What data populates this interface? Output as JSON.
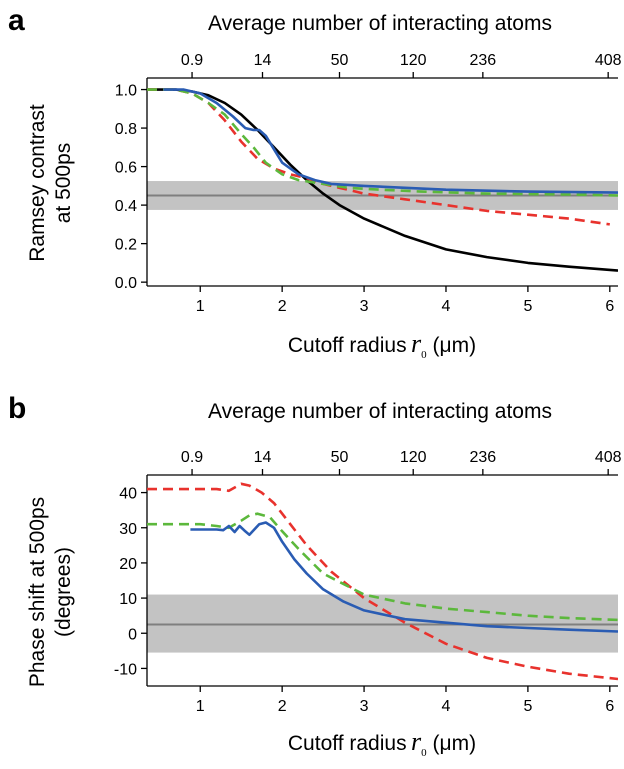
{
  "chart_data": [
    {
      "type": "line",
      "panel": "a",
      "top_axis_label": "Average number of interacting atoms",
      "top_ticks": [
        {
          "r": 0.9,
          "label": "0.9"
        },
        {
          "r": 1.76,
          "label": "14"
        },
        {
          "r": 2.7,
          "label": "50"
        },
        {
          "r": 3.6,
          "label": "120"
        },
        {
          "r": 4.45,
          "label": "236"
        },
        {
          "r": 5.98,
          "label": "408"
        }
      ],
      "xlabel_text": "Cutoff radius",
      "xlabel_symbol": "r",
      "xlabel_subscript": "0",
      "xlabel_unit": "(μm)",
      "ylabel_lines": [
        "Ramsey contrast",
        "at 500ps"
      ],
      "xlim": [
        0.35,
        6.1
      ],
      "ylim": [
        -0.02,
        1.06
      ],
      "xticks": [
        1,
        2,
        3,
        4,
        5,
        6
      ],
      "yticks": [
        0.0,
        0.2,
        0.4,
        0.6,
        0.8,
        1.0
      ],
      "ytick_labels": [
        "0.0",
        "0.2",
        "0.4",
        "0.6",
        "0.8",
        "1.0"
      ],
      "band": {
        "low": 0.375,
        "high": 0.525,
        "mid": 0.45
      },
      "series": [
        {
          "color": "#000000",
          "style": "solid",
          "x": [
            0.35,
            0.7,
            0.9,
            1.1,
            1.3,
            1.5,
            1.7,
            1.9,
            2.1,
            2.3,
            2.5,
            2.7,
            3.0,
            3.5,
            4.0,
            4.5,
            5.0,
            5.5,
            6.1
          ],
          "y": [
            1.0,
            1.0,
            0.99,
            0.97,
            0.93,
            0.87,
            0.79,
            0.7,
            0.61,
            0.53,
            0.46,
            0.4,
            0.33,
            0.24,
            0.17,
            0.13,
            0.1,
            0.08,
            0.06
          ]
        },
        {
          "color": "#e8322d",
          "style": "dashed",
          "x": [
            0.35,
            0.7,
            0.9,
            1.1,
            1.3,
            1.5,
            1.7,
            1.9,
            2.1,
            2.3,
            2.5,
            2.7,
            3.0,
            3.5,
            4.0,
            4.5,
            5.0,
            5.5,
            6.0
          ],
          "y": [
            1.0,
            1.0,
            0.98,
            0.93,
            0.84,
            0.73,
            0.64,
            0.59,
            0.56,
            0.54,
            0.51,
            0.49,
            0.46,
            0.43,
            0.4,
            0.37,
            0.35,
            0.33,
            0.3
          ]
        },
        {
          "color": "#5cb83c",
          "style": "dashed",
          "x": [
            0.35,
            0.7,
            0.9,
            1.1,
            1.3,
            1.5,
            1.65,
            1.8,
            2.0,
            2.2,
            2.5,
            2.8,
            3.2,
            3.7,
            4.5,
            5.5,
            6.1
          ],
          "y": [
            1.0,
            1.0,
            0.98,
            0.93,
            0.87,
            0.77,
            0.7,
            0.62,
            0.56,
            0.53,
            0.51,
            0.49,
            0.48,
            0.47,
            0.46,
            0.455,
            0.45
          ]
        },
        {
          "color": "#2a5cb3",
          "style": "solid",
          "x": [
            0.55,
            0.8,
            1.0,
            1.2,
            1.4,
            1.55,
            1.65,
            1.72,
            1.8,
            1.9,
            2.0,
            2.2,
            2.4,
            2.6,
            3.0,
            3.5,
            4.0,
            5.0,
            6.1
          ],
          "y": [
            1.0,
            1.0,
            0.98,
            0.93,
            0.86,
            0.8,
            0.79,
            0.79,
            0.76,
            0.69,
            0.62,
            0.56,
            0.53,
            0.51,
            0.5,
            0.49,
            0.48,
            0.47,
            0.465
          ]
        }
      ]
    },
    {
      "type": "line",
      "panel": "b",
      "top_axis_label": "Average number of interacting atoms",
      "top_ticks": [
        {
          "r": 0.9,
          "label": "0.9"
        },
        {
          "r": 1.76,
          "label": "14"
        },
        {
          "r": 2.7,
          "label": "50"
        },
        {
          "r": 3.6,
          "label": "120"
        },
        {
          "r": 4.45,
          "label": "236"
        },
        {
          "r": 5.98,
          "label": "408"
        }
      ],
      "xlabel_text": "Cutoff radius",
      "xlabel_symbol": "r",
      "xlabel_subscript": "0",
      "xlabel_unit": "(μm)",
      "ylabel_lines": [
        "Phase shift at 500ps",
        "(degrees)"
      ],
      "xlim": [
        0.35,
        6.1
      ],
      "ylim": [
        -15,
        45
      ],
      "xticks": [
        1,
        2,
        3,
        4,
        5,
        6
      ],
      "yticks": [
        -10,
        0,
        10,
        20,
        30,
        40
      ],
      "ytick_labels": [
        "-10",
        "0",
        "10",
        "20",
        "30",
        "40"
      ],
      "band": {
        "low": -5.5,
        "high": 11,
        "mid": 2.5
      },
      "series": [
        {
          "color": "#e8322d",
          "style": "dashed",
          "x": [
            0.35,
            0.7,
            1.0,
            1.2,
            1.35,
            1.5,
            1.6,
            1.75,
            1.9,
            2.1,
            2.3,
            2.6,
            3.0,
            3.5,
            4.0,
            4.5,
            5.0,
            5.5,
            6.1
          ],
          "y": [
            41,
            41,
            41,
            41,
            40.5,
            42.5,
            42,
            40,
            37,
            31,
            25,
            17.5,
            10,
            3,
            -3,
            -7,
            -9.5,
            -11.5,
            -13
          ]
        },
        {
          "color": "#5cb83c",
          "style": "dashed",
          "x": [
            0.35,
            0.7,
            1.0,
            1.2,
            1.35,
            1.5,
            1.6,
            1.7,
            1.85,
            2.0,
            2.2,
            2.5,
            3.0,
            3.5,
            4.0,
            4.5,
            5.0,
            5.5,
            6.1
          ],
          "y": [
            31,
            31,
            31,
            30.5,
            30,
            32,
            33.5,
            34,
            33,
            29,
            24,
            17,
            11,
            8.5,
            7,
            6,
            5,
            4.3,
            3.8
          ]
        },
        {
          "color": "#2a5cb3",
          "style": "solid",
          "x": [
            0.88,
            1.0,
            1.1,
            1.2,
            1.28,
            1.35,
            1.42,
            1.48,
            1.54,
            1.6,
            1.66,
            1.72,
            1.8,
            1.9,
            2.0,
            2.15,
            2.3,
            2.5,
            2.75,
            3.0,
            3.5,
            4.0,
            4.5,
            5.0,
            5.5,
            6.1
          ],
          "y": [
            29.5,
            29.5,
            29.5,
            29.5,
            29.3,
            30.5,
            28.8,
            30.5,
            29.2,
            28,
            29.5,
            31,
            31.5,
            30,
            26,
            21,
            17,
            12.5,
            9,
            6.5,
            4,
            3,
            2,
            1.5,
            1,
            0.5
          ]
        }
      ]
    }
  ]
}
